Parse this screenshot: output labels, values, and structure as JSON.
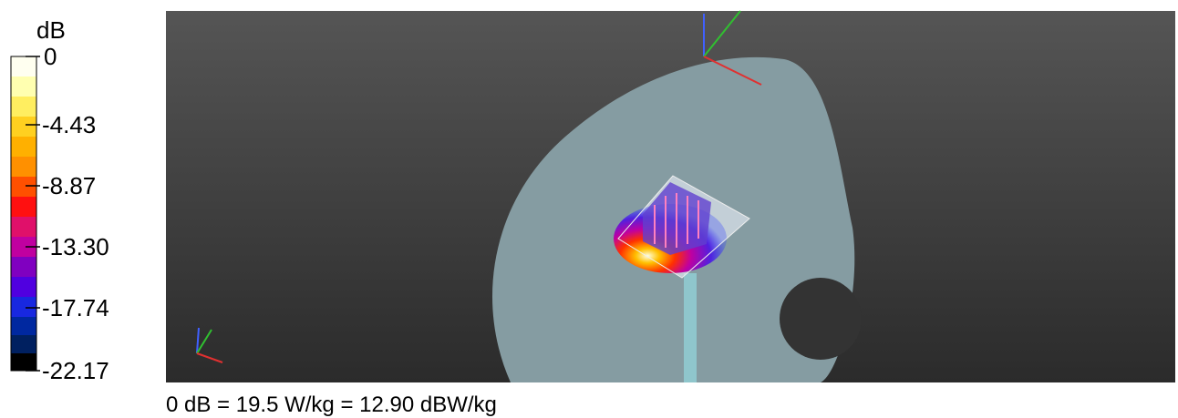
{
  "legend": {
    "unit": "dB",
    "ticks": [
      "0",
      "-4.43",
      "-8.87",
      "-13.30",
      "-17.74",
      "-22.17"
    ]
  },
  "caption": "0 dB = 19.5 W/kg = 12.90 dBW/kg"
}
